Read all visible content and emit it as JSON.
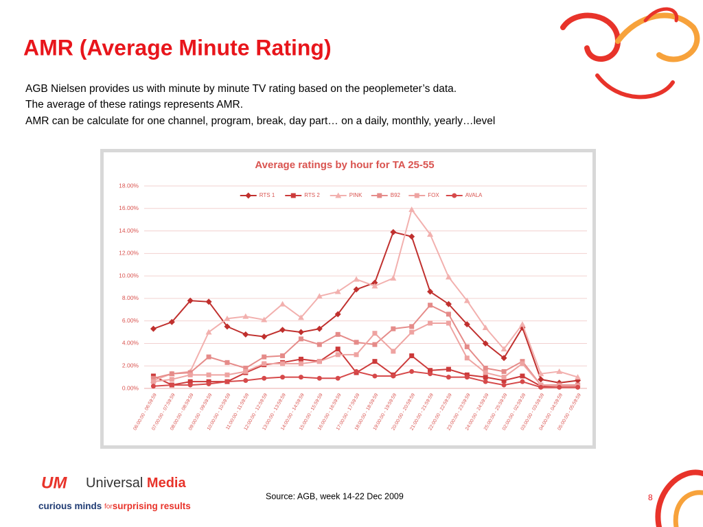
{
  "header": {
    "title": "AMR (Average Minute Rating)"
  },
  "body": {
    "lines": [
      "AGB Nielsen provides us with minute by minute TV rating based on the peoplemeter’s data.",
      "The average of these ratings represents AMR.",
      "AMR can be calculate for one channel, program, break, day part… on a daily, monthly, yearly…level"
    ]
  },
  "chart_data": {
    "type": "line",
    "title": "Average ratings by hour for TA 25-55",
    "categories": [
      "06:00:00 - 06:59:59",
      "07:00:00 - 07:59:59",
      "08:00:00 - 08:59:59",
      "09:00:00 - 09:59:59",
      "10:00:00 - 10:59:59",
      "11:00:00 - 11:59:59",
      "12:00:00 - 12:59:59",
      "13:00:00 - 13:59:59",
      "14:00:00 - 14:59:59",
      "15:00:00 - 15:59:59",
      "16:00:00 - 16:59:59",
      "17:00:00 - 17:59:59",
      "18:00:00 - 18:59:59",
      "19:00:00 - 19:59:59",
      "20:00:00 - 20:59:59",
      "21:00:00 - 21:59:59",
      "22:00:00 - 22:59:59",
      "23:00:00 - 23:59:59",
      "24:00:00 - 24:59:59",
      "25:00:00 - 25:59:59",
      "02:00:00 - 02:59:59",
      "03:00:00 - 03:59:59",
      "04:00:00 - 04:59:59",
      "05:00:00 - 05:59:59"
    ],
    "series": [
      {
        "name": "RTS 1",
        "color": "#c0302e",
        "marker": "diamond",
        "values": [
          5.3,
          5.9,
          7.8,
          7.7,
          5.5,
          4.8,
          4.6,
          5.2,
          5.0,
          5.3,
          6.6,
          8.8,
          9.4,
          13.9,
          13.5,
          8.6,
          7.5,
          5.7,
          4.0,
          2.7,
          5.4,
          0.8,
          0.5,
          0.7
        ]
      },
      {
        "name": "RTS 2",
        "color": "#cc3a3a",
        "marker": "square",
        "values": [
          1.1,
          0.3,
          0.6,
          0.6,
          0.6,
          1.4,
          2.1,
          2.3,
          2.6,
          2.4,
          3.5,
          1.4,
          2.4,
          1.2,
          2.9,
          1.6,
          1.7,
          1.2,
          1.0,
          0.7,
          1.1,
          0.2,
          0.2,
          0.3
        ]
      },
      {
        "name": "PINK",
        "color": "#f2b0ae",
        "marker": "triangle",
        "values": [
          0.7,
          1.3,
          1.5,
          5.0,
          6.2,
          6.4,
          6.1,
          7.5,
          6.3,
          8.2,
          8.6,
          9.7,
          9.1,
          9.8,
          15.9,
          13.7,
          9.9,
          7.8,
          5.4,
          3.5,
          5.7,
          1.3,
          1.5,
          1.0
        ]
      },
      {
        "name": "B92",
        "color": "#e58b89",
        "marker": "square",
        "values": [
          0.9,
          1.3,
          1.4,
          2.8,
          2.3,
          1.8,
          2.8,
          2.9,
          4.4,
          3.9,
          4.8,
          4.1,
          3.9,
          5.3,
          5.5,
          7.4,
          6.6,
          3.7,
          1.8,
          1.5,
          2.4,
          0.3,
          0.3,
          0.3
        ]
      },
      {
        "name": "FOX",
        "color": "#eea3a1",
        "marker": "square",
        "values": [
          0.6,
          0.8,
          1.2,
          1.2,
          1.2,
          1.5,
          2.2,
          2.2,
          2.2,
          2.4,
          3.0,
          3.0,
          4.9,
          3.3,
          5.0,
          5.8,
          5.8,
          2.7,
          1.4,
          1.0,
          2.2,
          0.3,
          0.2,
          0.2
        ]
      },
      {
        "name": "AVALA",
        "color": "#d6494a",
        "marker": "circle",
        "values": [
          0.2,
          0.3,
          0.3,
          0.4,
          0.6,
          0.7,
          0.9,
          1.0,
          1.0,
          0.9,
          0.9,
          1.5,
          1.1,
          1.1,
          1.5,
          1.3,
          1.0,
          1.0,
          0.6,
          0.3,
          0.6,
          0.1,
          0.1,
          0.1
        ]
      }
    ],
    "ylim": [
      0,
      18
    ],
    "yticks": [
      {
        "value": 0,
        "label": "0.00%"
      },
      {
        "value": 2,
        "label": "2.00%"
      },
      {
        "value": 4,
        "label": "4.00%"
      },
      {
        "value": 6,
        "label": "6.00%"
      },
      {
        "value": 8,
        "label": "8.00%"
      },
      {
        "value": 10,
        "label": "10.00%"
      },
      {
        "value": 12,
        "label": "12.00%"
      },
      {
        "value": 14,
        "label": "14.00%"
      },
      {
        "value": 16,
        "label": "16.00%"
      },
      {
        "value": 18,
        "label": "18.00%"
      }
    ],
    "grid": true,
    "legend": "top"
  },
  "footer": {
    "logo_mark": "UM",
    "logo_word1": "Universal",
    "logo_word2": "Media",
    "tagline1": "curious minds",
    "tagline2": "for",
    "tagline3": "surprising results",
    "source": "Source: AGB, week 14-22 Dec 2009",
    "page": "8"
  }
}
